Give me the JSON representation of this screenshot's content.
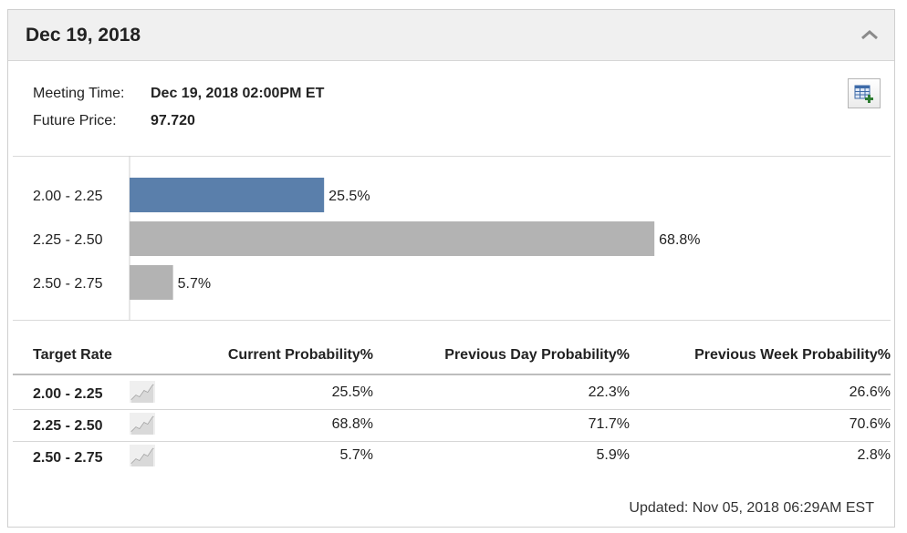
{
  "header": {
    "title": "Dec 19, 2018"
  },
  "meeting": {
    "time_label": "Meeting Time:",
    "time_value": "Dec 19, 2018 02:00PM ET",
    "price_label": "Future Price:",
    "price_value": "97.720"
  },
  "chart_data": {
    "type": "bar",
    "orientation": "horizontal",
    "categories": [
      "2.00 - 2.25",
      "2.25 - 2.50",
      "2.50 - 2.75"
    ],
    "values": [
      25.5,
      68.8,
      5.7
    ],
    "value_labels": [
      "25.5%",
      "68.8%",
      "5.7%"
    ],
    "highlight_index": 0,
    "colors": {
      "highlight": "#5a7fab",
      "default": "#b3b3b3"
    },
    "xlim": [
      0,
      100
    ]
  },
  "table": {
    "columns": [
      "Target Rate",
      "Current Probability%",
      "Previous Day Probability%",
      "Previous Week Probability%"
    ],
    "rows": [
      {
        "rate": "2.00 - 2.25",
        "current": "25.5%",
        "prev_day": "22.3%",
        "prev_week": "26.6%"
      },
      {
        "rate": "2.25 - 2.50",
        "current": "68.8%",
        "prev_day": "71.7%",
        "prev_week": "70.6%"
      },
      {
        "rate": "2.50 - 2.75",
        "current": "5.7%",
        "prev_day": "5.9%",
        "prev_week": "2.8%"
      }
    ]
  },
  "footer": {
    "updated": "Updated: Nov 05, 2018 06:29AM EST"
  }
}
